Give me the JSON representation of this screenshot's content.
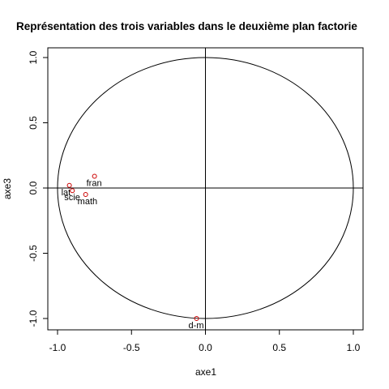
{
  "chart_data": {
    "type": "scatter",
    "title": "Représentation des trois variables dans le deuxième plan factorie",
    "xlabel": "axe1",
    "ylabel": "axe3",
    "xlim": [
      -1.0,
      1.0
    ],
    "ylim": [
      -1.0,
      1.0
    ],
    "xticks": [
      -1.0,
      -0.5,
      0.0,
      0.5,
      1.0
    ],
    "yticks": [
      -1.0,
      -0.5,
      0.0,
      0.5,
      1.0
    ],
    "xtick_labels": [
      "-1.0",
      "-0.5",
      "0.0",
      "0.5",
      "1.0"
    ],
    "ytick_labels": [
      "-1.0",
      "-0.5",
      "0.0",
      "0.5",
      "1.0"
    ],
    "points": [
      {
        "label": "lat",
        "x": -0.92,
        "y": 0.02
      },
      {
        "label": "scie",
        "x": -0.9,
        "y": -0.02
      },
      {
        "label": "fran",
        "x": -0.75,
        "y": 0.09
      },
      {
        "label": "math",
        "x": -0.81,
        "y": -0.05
      },
      {
        "label": "d-m",
        "x": -0.06,
        "y": -1.0
      }
    ],
    "reference_lines": {
      "vertical_x": 0.0,
      "horizontal_y": 0.0
    },
    "circle_radius": 1.0,
    "point_color": "#cc0000",
    "grid": false,
    "legend": "none"
  }
}
